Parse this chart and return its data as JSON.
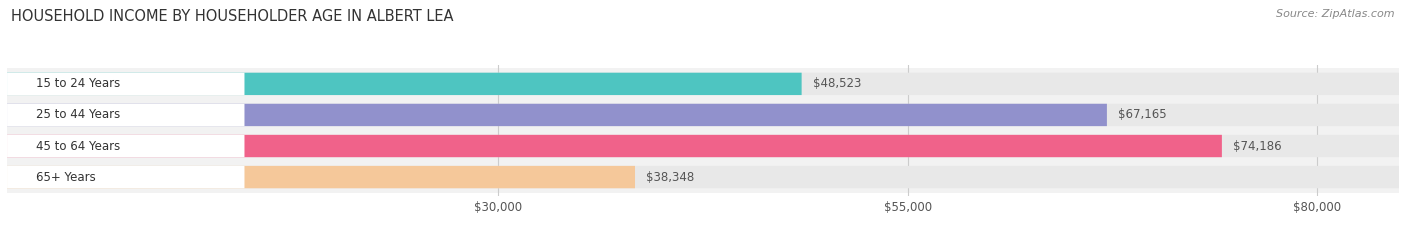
{
  "title": "HOUSEHOLD INCOME BY HOUSEHOLDER AGE IN ALBERT LEA",
  "source": "Source: ZipAtlas.com",
  "categories": [
    "15 to 24 Years",
    "25 to 44 Years",
    "45 to 64 Years",
    "65+ Years"
  ],
  "values": [
    48523,
    67165,
    74186,
    38348
  ],
  "bar_colors": [
    "#4EC5C1",
    "#9191CC",
    "#F0628A",
    "#F5C89A"
  ],
  "bar_bg_color": "#E8E8E8",
  "row_bg_color": "#F2F2F2",
  "value_labels": [
    "$48,523",
    "$67,165",
    "$74,186",
    "$38,348"
  ],
  "x_ticks": [
    30000,
    55000,
    80000
  ],
  "x_tick_labels": [
    "$30,000",
    "$55,000",
    "$80,000"
  ],
  "x_min": 0,
  "x_max": 85000,
  "figsize": [
    14.06,
    2.33
  ],
  "dpi": 100,
  "background_color": "#FFFFFF",
  "label_bg_color": "#FFFFFF",
  "grid_color": "#CCCCCC"
}
